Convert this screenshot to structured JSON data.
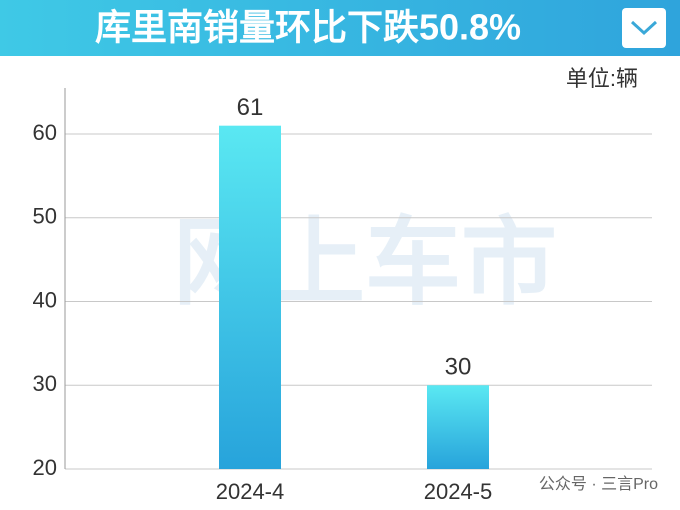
{
  "chart_data": {
    "type": "bar",
    "title": "库里南销量环比下跌50.8%",
    "unit_label": "单位:辆",
    "watermark": "网上车市",
    "source": "公众号 · 三言Pro",
    "categories": [
      "2024-4",
      "2024-5"
    ],
    "values": [
      61,
      30
    ],
    "color": [
      "#5ae8f2",
      "#27a3db"
    ],
    "ylim": [
      20,
      65.5
    ],
    "yticks": [
      20,
      30,
      40,
      50,
      60
    ],
    "grid": true
  }
}
